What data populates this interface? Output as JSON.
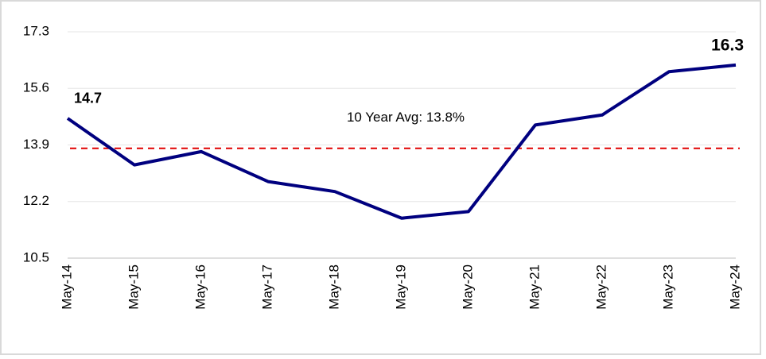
{
  "chart_data": {
    "type": "line",
    "categories": [
      "May-14",
      "May-15",
      "May-16",
      "May-17",
      "May-18",
      "May-19",
      "May-20",
      "May-21",
      "May-22",
      "May-23",
      "May-24"
    ],
    "series": [
      {
        "color": "#00007f",
        "values": [
          14.7,
          13.3,
          13.7,
          12.8,
          12.5,
          11.7,
          11.9,
          14.5,
          14.8,
          16.1,
          16.3
        ],
        "value_labels": [
          "14.7",
          null,
          null,
          null,
          null,
          null,
          null,
          null,
          null,
          null,
          "16.3"
        ]
      }
    ],
    "reference_line": {
      "value": 13.8,
      "label": "10 Year Avg: 13.8%",
      "color": "#e00000"
    },
    "ylim": [
      10.5,
      17.3
    ],
    "yticks": [
      10.5,
      12.2,
      13.9,
      15.6,
      17.3
    ],
    "grid": true
  }
}
